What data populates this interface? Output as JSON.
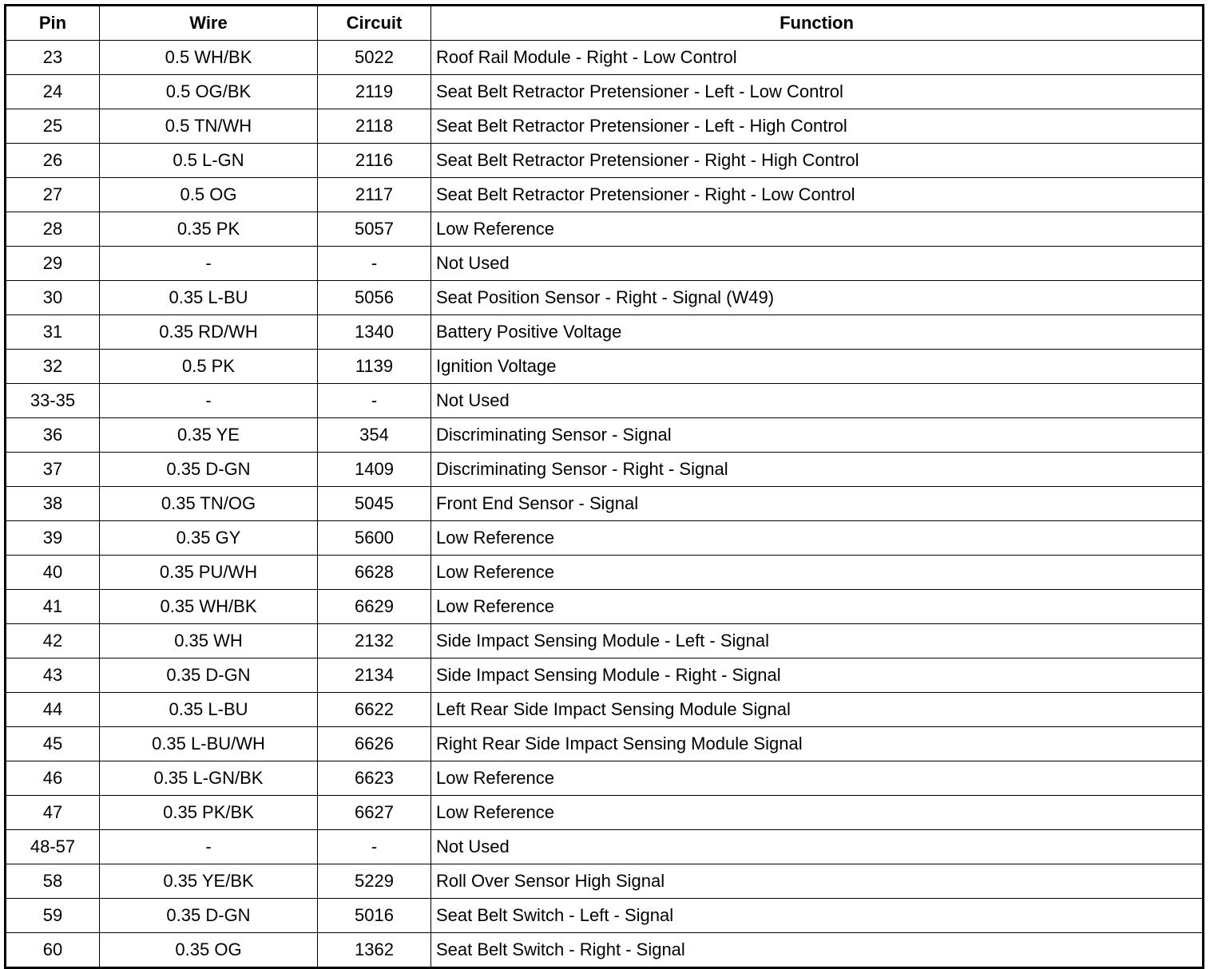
{
  "headers": {
    "pin": "Pin",
    "wire": "Wire",
    "circuit": "Circuit",
    "function": "Function"
  },
  "rows": [
    {
      "pin": "23",
      "wire": "0.5 WH/BK",
      "circuit": "5022",
      "function": "Roof Rail Module - Right - Low Control"
    },
    {
      "pin": "24",
      "wire": "0.5 OG/BK",
      "circuit": "2119",
      "function": "Seat Belt Retractor Pretensioner - Left - Low Control"
    },
    {
      "pin": "25",
      "wire": "0.5 TN/WH",
      "circuit": "2118",
      "function": "Seat Belt Retractor Pretensioner - Left - High Control"
    },
    {
      "pin": "26",
      "wire": "0.5 L-GN",
      "circuit": "2116",
      "function": "Seat Belt Retractor Pretensioner - Right - High Control"
    },
    {
      "pin": "27",
      "wire": "0.5 OG",
      "circuit": "2117",
      "function": "Seat Belt Retractor Pretensioner - Right - Low Control"
    },
    {
      "pin": "28",
      "wire": "0.35 PK",
      "circuit": "5057",
      "function": "Low Reference"
    },
    {
      "pin": "29",
      "wire": "-",
      "circuit": "-",
      "function": "Not Used"
    },
    {
      "pin": "30",
      "wire": "0.35 L-BU",
      "circuit": "5056",
      "function": "Seat Position Sensor - Right - Signal (W49)"
    },
    {
      "pin": "31",
      "wire": "0.35 RD/WH",
      "circuit": "1340",
      "function": "Battery Positive Voltage"
    },
    {
      "pin": "32",
      "wire": "0.5 PK",
      "circuit": "1139",
      "function": "Ignition Voltage"
    },
    {
      "pin": "33-35",
      "wire": "-",
      "circuit": "-",
      "function": "Not Used"
    },
    {
      "pin": "36",
      "wire": "0.35 YE",
      "circuit": "354",
      "function": "Discriminating Sensor - Signal"
    },
    {
      "pin": "37",
      "wire": "0.35 D-GN",
      "circuit": "1409",
      "function": "Discriminating Sensor - Right - Signal"
    },
    {
      "pin": "38",
      "wire": "0.35 TN/OG",
      "circuit": "5045",
      "function": "Front End Sensor - Signal"
    },
    {
      "pin": "39",
      "wire": "0.35 GY",
      "circuit": "5600",
      "function": "Low Reference"
    },
    {
      "pin": "40",
      "wire": "0.35 PU/WH",
      "circuit": "6628",
      "function": "Low Reference"
    },
    {
      "pin": "41",
      "wire": "0.35 WH/BK",
      "circuit": "6629",
      "function": "Low Reference"
    },
    {
      "pin": "42",
      "wire": "0.35 WH",
      "circuit": "2132",
      "function": "Side Impact Sensing Module - Left - Signal"
    },
    {
      "pin": "43",
      "wire": "0.35 D-GN",
      "circuit": "2134",
      "function": "Side Impact Sensing Module - Right - Signal"
    },
    {
      "pin": "44",
      "wire": "0.35 L-BU",
      "circuit": "6622",
      "function": "Left Rear Side Impact Sensing Module Signal"
    },
    {
      "pin": "45",
      "wire": "0.35 L-BU/WH",
      "circuit": "6626",
      "function": "Right Rear Side Impact Sensing Module Signal"
    },
    {
      "pin": "46",
      "wire": "0.35 L-GN/BK",
      "circuit": "6623",
      "function": "Low Reference"
    },
    {
      "pin": "47",
      "wire": "0.35 PK/BK",
      "circuit": "6627",
      "function": "Low Reference"
    },
    {
      "pin": "48-57",
      "wire": "-",
      "circuit": "-",
      "function": "Not Used"
    },
    {
      "pin": "58",
      "wire": "0.35 YE/BK",
      "circuit": "5229",
      "function": "Roll Over Sensor High Signal"
    },
    {
      "pin": "59",
      "wire": "0.35 D-GN",
      "circuit": "5016",
      "function": "Seat Belt Switch - Left - Signal"
    },
    {
      "pin": "60",
      "wire": "0.35 OG",
      "circuit": "1362",
      "function": "Seat Belt Switch - Right - Signal"
    }
  ]
}
